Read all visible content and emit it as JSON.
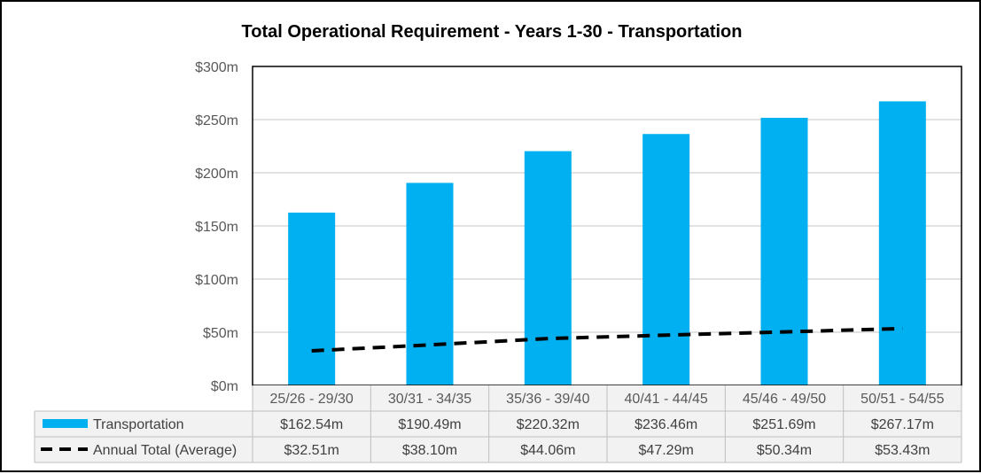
{
  "chart_data": {
    "type": "bar",
    "title": "Total Operational Requirement - Years 1-30 - Transportation",
    "categories": [
      "25/26 - 29/30",
      "30/31 - 34/35",
      "35/36 - 39/40",
      "40/41 - 44/45",
      "45/46 - 49/50",
      "50/51 - 54/55"
    ],
    "ylim": [
      0,
      300
    ],
    "yticks": [
      0,
      50,
      100,
      150,
      200,
      250,
      300
    ],
    "ytick_labels": [
      "$0m",
      "$50m",
      "$100m",
      "$150m",
      "$200m",
      "$250m",
      "$300m"
    ],
    "xlabel": "",
    "ylabel": "",
    "grid": true,
    "legend_position": "data-table-bottom",
    "series": [
      {
        "name": "Transportation",
        "kind": "bar",
        "color": "#00B0F0",
        "values": [
          162.54,
          190.49,
          220.32,
          236.46,
          251.69,
          267.17
        ],
        "labels": [
          "$162.54m",
          "$190.49m",
          "$220.32m",
          "$236.46m",
          "$251.69m",
          "$267.17m"
        ]
      },
      {
        "name": "Annual Total (Average)",
        "kind": "line-dashed",
        "color": "#000000",
        "values": [
          32.51,
          38.1,
          44.06,
          47.29,
          50.34,
          53.43
        ],
        "labels": [
          "$32.51m",
          "$38.10m",
          "$44.06m",
          "$47.29m",
          "$50.34m",
          "$53.43m"
        ]
      }
    ]
  },
  "colors": {
    "gridline": "#D9D9D9",
    "table_border": "#BFBFBF",
    "table_header_bg": "#F2F2F2"
  }
}
